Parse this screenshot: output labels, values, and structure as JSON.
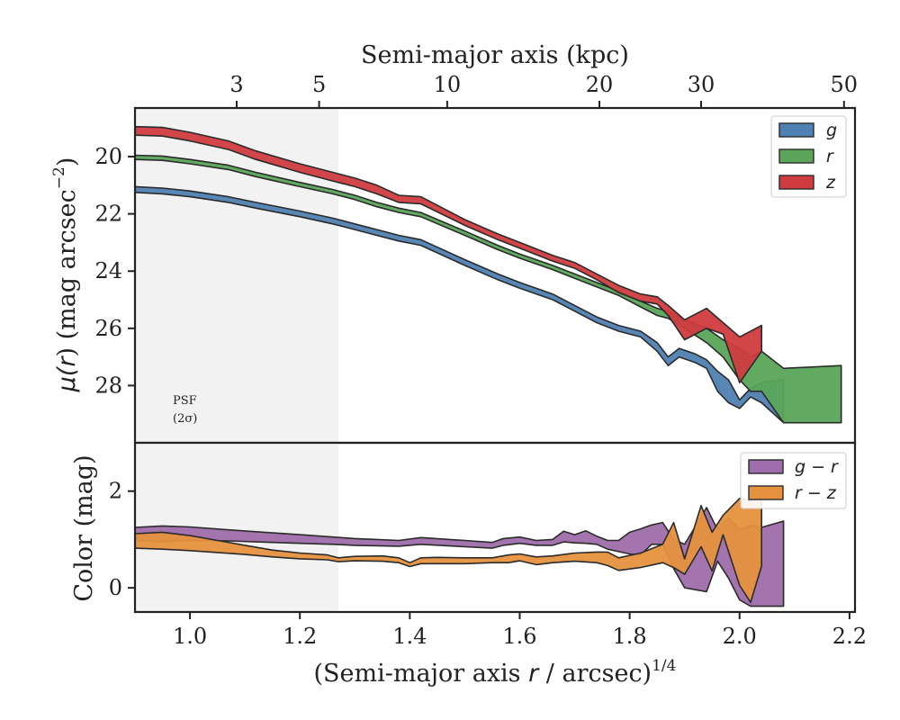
{
  "chart_data": [
    {
      "type": "area",
      "panel": "surface-brightness",
      "title": "",
      "xlabel": "(Semi-major axis r / arcsec)^1/4",
      "xlabel_parts": {
        "pre": "(Semi-major axis ",
        "var": "r",
        "mid": " / arcsec)",
        "sup": "1/4"
      },
      "ylabel": "μ(r) (mag arcsec⁻²)",
      "ylabel_parts": {
        "mu": "μ(",
        "var": "r",
        "rest": ") (mag arcsec",
        "sup": "−2",
        "close": ")"
      },
      "top_xlabel": "Semi-major axis (kpc)",
      "xlim": [
        0.9,
        2.21
      ],
      "ylim": [
        30.0,
        18.3
      ],
      "y_inverted": true,
      "xticks": [
        1.0,
        1.2,
        1.4,
        1.6,
        1.8,
        2.0,
        2.2
      ],
      "xtick_labels": [
        "1.0",
        "1.2",
        "1.4",
        "1.6",
        "1.8",
        "2.0",
        "2.2"
      ],
      "yticks": [
        20,
        22,
        24,
        26,
        28
      ],
      "ytick_labels": [
        "20",
        "22",
        "24",
        "26",
        "28"
      ],
      "top_xticks": [
        3,
        5,
        10,
        20,
        30,
        50
      ],
      "top_xtick_labels": [
        "3",
        "5",
        "10",
        "20",
        "30",
        "50"
      ],
      "top_tick_x": [
        1.085,
        1.235,
        1.468,
        1.745,
        1.93,
        2.19
      ],
      "psf_region": {
        "x_max": 1.27,
        "label_line1": "PSF",
        "label_line2": "(2σ)"
      },
      "legend": {
        "placement": "top-right",
        "entries": [
          "g",
          "r",
          "z"
        ]
      },
      "series": [
        {
          "name": "g",
          "color": "#4f81b2",
          "x": [
            0.9,
            0.95,
            1.0,
            1.07,
            1.12,
            1.2,
            1.26,
            1.3,
            1.34,
            1.38,
            1.42,
            1.5,
            1.56,
            1.6,
            1.66,
            1.7,
            1.74,
            1.78,
            1.82,
            1.85,
            1.87,
            1.89,
            1.92,
            1.94,
            1.96,
            1.98,
            2.0,
            2.02,
            2.04,
            2.08
          ],
          "y_upper": [
            21.05,
            21.1,
            21.2,
            21.4,
            21.6,
            21.9,
            22.15,
            22.35,
            22.55,
            22.75,
            22.9,
            23.6,
            24.1,
            24.4,
            24.8,
            25.2,
            25.6,
            25.9,
            26.1,
            26.5,
            27.0,
            26.7,
            26.9,
            27.1,
            27.5,
            27.8,
            28.5,
            28.1,
            27.9,
            27.8
          ],
          "y_lower": [
            21.25,
            21.3,
            21.4,
            21.6,
            21.8,
            22.1,
            22.35,
            22.55,
            22.75,
            22.95,
            23.1,
            23.8,
            24.3,
            24.6,
            25.0,
            25.4,
            25.8,
            26.1,
            26.3,
            26.8,
            27.3,
            27.0,
            27.2,
            27.4,
            28.2,
            28.6,
            28.8,
            28.4,
            28.6,
            29.3
          ]
        },
        {
          "name": "r",
          "color": "#5aa55a",
          "x": [
            0.9,
            0.95,
            1.0,
            1.07,
            1.12,
            1.2,
            1.26,
            1.3,
            1.34,
            1.38,
            1.42,
            1.5,
            1.56,
            1.6,
            1.66,
            1.7,
            1.74,
            1.78,
            1.82,
            1.85,
            1.87,
            1.9,
            1.94,
            1.97,
            2.0,
            2.02,
            2.04,
            2.08,
            2.185
          ],
          "y_upper": [
            19.95,
            19.98,
            20.1,
            20.3,
            20.55,
            20.9,
            21.15,
            21.35,
            21.6,
            21.8,
            21.95,
            22.6,
            23.1,
            23.4,
            23.8,
            24.1,
            24.4,
            24.7,
            25.05,
            25.3,
            25.4,
            25.7,
            26.0,
            26.4,
            26.7,
            27.0,
            26.8,
            27.4,
            27.3
          ],
          "y_lower": [
            20.1,
            20.13,
            20.25,
            20.45,
            20.7,
            21.05,
            21.3,
            21.5,
            21.75,
            21.95,
            22.1,
            22.75,
            23.25,
            23.55,
            23.95,
            24.25,
            24.55,
            24.85,
            25.25,
            25.55,
            25.65,
            26.0,
            26.5,
            27.0,
            27.8,
            28.2,
            28.2,
            29.3,
            29.3
          ]
        },
        {
          "name": "z",
          "color": "#d03b3f",
          "x": [
            0.9,
            0.95,
            1.0,
            1.07,
            1.12,
            1.2,
            1.26,
            1.3,
            1.34,
            1.38,
            1.42,
            1.5,
            1.56,
            1.6,
            1.66,
            1.7,
            1.74,
            1.78,
            1.82,
            1.85,
            1.87,
            1.9,
            1.94,
            1.97,
            2.0,
            2.04
          ],
          "y_upper": [
            18.95,
            18.98,
            19.15,
            19.45,
            19.8,
            20.25,
            20.55,
            20.75,
            21.0,
            21.35,
            21.4,
            22.2,
            22.7,
            23.0,
            23.45,
            23.7,
            24.1,
            24.5,
            24.8,
            24.9,
            25.2,
            25.7,
            25.3,
            25.8,
            26.3,
            25.9
          ],
          "y_lower": [
            19.25,
            19.28,
            19.45,
            19.75,
            20.1,
            20.55,
            20.85,
            21.05,
            21.3,
            21.6,
            21.65,
            22.4,
            22.9,
            23.2,
            23.65,
            23.9,
            24.3,
            24.75,
            25.05,
            25.15,
            25.55,
            26.4,
            26.0,
            26.2,
            27.9,
            26.8
          ]
        }
      ]
    },
    {
      "type": "area",
      "panel": "color",
      "title": "",
      "ylabel": "Color (mag)",
      "xlim": [
        0.9,
        2.21
      ],
      "ylim": [
        -0.5,
        3.0
      ],
      "yticks": [
        0,
        2
      ],
      "ytick_labels": [
        "0",
        "2"
      ],
      "legend": {
        "placement": "top-right",
        "entries": [
          "g − r",
          "r − z"
        ]
      },
      "series": [
        {
          "name": "g − r",
          "color": "#9f6dab",
          "x": [
            0.9,
            0.95,
            1.0,
            1.07,
            1.12,
            1.2,
            1.26,
            1.3,
            1.34,
            1.38,
            1.42,
            1.5,
            1.55,
            1.57,
            1.6,
            1.63,
            1.66,
            1.68,
            1.7,
            1.72,
            1.74,
            1.76,
            1.78,
            1.8,
            1.82,
            1.84,
            1.86,
            1.88,
            1.9,
            1.94,
            1.96,
            1.98,
            2.0,
            2.02,
            2.04,
            2.08
          ],
          "y_upper": [
            1.25,
            1.28,
            1.26,
            1.2,
            1.16,
            1.1,
            1.05,
            1.02,
            1.0,
            0.98,
            1.04,
            0.98,
            0.94,
            1.02,
            1.05,
            0.98,
            1.0,
            1.17,
            1.1,
            1.18,
            1.07,
            0.98,
            0.98,
            1.15,
            1.22,
            1.3,
            1.35,
            1.0,
            0.9,
            1.66,
            1.2,
            1.45,
            1.2,
            1.3,
            1.25,
            1.38
          ],
          "y_lower": [
            0.98,
            0.95,
            0.98,
            0.97,
            0.95,
            0.92,
            0.9,
            0.88,
            0.87,
            0.86,
            0.9,
            0.85,
            0.82,
            0.88,
            0.92,
            0.88,
            0.88,
            0.95,
            0.93,
            0.92,
            0.9,
            0.8,
            0.75,
            0.7,
            0.68,
            0.9,
            0.9,
            0.4,
            0.0,
            -0.08,
            0.55,
            0.2,
            -0.25,
            -0.38,
            -0.38,
            -0.38
          ]
        },
        {
          "name": "r − z",
          "color": "#e6913e",
          "x": [
            0.9,
            0.95,
            1.0,
            1.05,
            1.1,
            1.15,
            1.2,
            1.25,
            1.27,
            1.3,
            1.35,
            1.38,
            1.4,
            1.42,
            1.45,
            1.5,
            1.55,
            1.58,
            1.6,
            1.63,
            1.66,
            1.7,
            1.74,
            1.76,
            1.78,
            1.82,
            1.86,
            1.88,
            1.9,
            1.93,
            1.95,
            1.97,
            2.0,
            2.02,
            2.04
          ],
          "y_upper": [
            1.12,
            1.15,
            1.08,
            0.98,
            0.88,
            0.78,
            0.72,
            0.68,
            0.62,
            0.65,
            0.66,
            0.62,
            0.52,
            0.62,
            0.63,
            0.62,
            0.62,
            0.68,
            0.7,
            0.64,
            0.66,
            0.72,
            0.74,
            0.74,
            0.62,
            0.72,
            0.9,
            1.35,
            0.6,
            1.7,
            1.15,
            1.5,
            1.85,
            1.8,
            1.85
          ],
          "y_lower": [
            0.82,
            0.8,
            0.77,
            0.73,
            0.69,
            0.64,
            0.6,
            0.58,
            0.54,
            0.56,
            0.55,
            0.52,
            0.44,
            0.5,
            0.5,
            0.5,
            0.52,
            0.52,
            0.56,
            0.48,
            0.52,
            0.55,
            0.52,
            0.46,
            0.36,
            0.42,
            0.52,
            0.42,
            0.28,
            0.85,
            0.35,
            1.1,
            0.05,
            -0.3,
            0.45
          ]
        }
      ]
    }
  ]
}
